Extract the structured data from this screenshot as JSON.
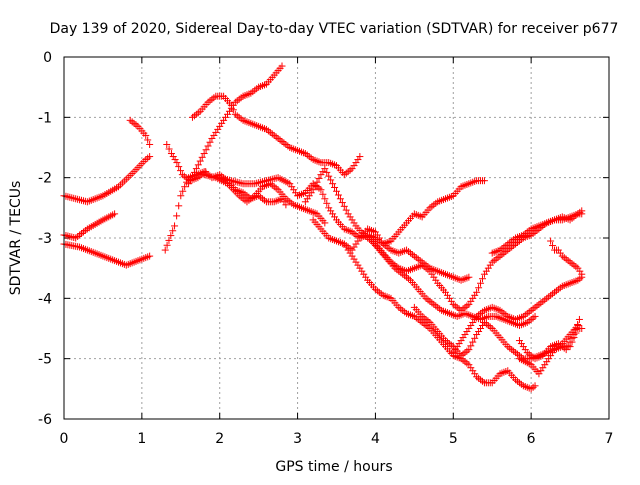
{
  "chart_data": {
    "type": "scatter",
    "title": "Day 139 of 2020, Sidereal Day-to-day VTEC variation (SDTVAR) for receiver p677",
    "xlabel": "GPS time / hours",
    "ylabel": "SDTVAR / TECUs",
    "xlim": [
      0,
      7
    ],
    "ylim": [
      -6,
      0
    ],
    "xticks": [
      {
        "value": 0,
        "label": "0"
      },
      {
        "value": 1,
        "label": "1"
      },
      {
        "value": 2,
        "label": "2"
      },
      {
        "value": 3,
        "label": "3"
      },
      {
        "value": 4,
        "label": "4"
      },
      {
        "value": 5,
        "label": "5"
      },
      {
        "value": 6,
        "label": "6"
      },
      {
        "value": 7,
        "label": "7"
      }
    ],
    "yticks": [
      {
        "value": 0,
        "label": "0"
      },
      {
        "value": -1,
        "label": "-1"
      },
      {
        "value": -2,
        "label": "-2"
      },
      {
        "value": -3,
        "label": "-3"
      },
      {
        "value": -4,
        "label": "-4"
      },
      {
        "value": -5,
        "label": "-5"
      },
      {
        "value": -6,
        "label": "-6"
      }
    ],
    "grid": true,
    "marker": "+",
    "marker_color": "#ff0000",
    "series": [
      {
        "x": [
          0.0,
          0.3,
          0.5,
          0.7,
          0.9,
          1.05,
          1.1
        ],
        "y": [
          -2.3,
          -2.4,
          -2.3,
          -2.15,
          -1.9,
          -1.7,
          -1.65
        ]
      },
      {
        "x": [
          0.0,
          0.2,
          0.4,
          0.6,
          0.8,
          1.0,
          1.1
        ],
        "y": [
          -3.1,
          -3.15,
          -3.25,
          -3.35,
          -3.45,
          -3.35,
          -3.3
        ]
      },
      {
        "x": [
          0.0,
          0.15,
          0.3,
          0.5,
          0.65
        ],
        "y": [
          -2.95,
          -3.0,
          -2.85,
          -2.7,
          -2.6
        ]
      },
      {
        "x": [
          0.85,
          0.95,
          1.05,
          1.1
        ],
        "y": [
          -1.05,
          -1.15,
          -1.3,
          -1.45
        ]
      },
      {
        "x": [
          1.32,
          1.38,
          1.45,
          1.52,
          1.62,
          1.72,
          1.82
        ],
        "y": [
          -1.45,
          -1.6,
          -1.75,
          -1.95,
          -2.05,
          -2.0,
          -1.9
        ]
      },
      {
        "x": [
          1.3,
          1.42,
          1.5,
          1.6,
          1.7,
          1.8,
          1.9,
          2.0,
          2.1,
          2.2,
          2.3,
          2.4,
          2.5,
          2.6,
          2.7,
          2.8,
          2.85
        ],
        "y": [
          -3.2,
          -2.8,
          -2.3,
          -2.0,
          -1.95,
          -1.9,
          -2.0,
          -1.95,
          -2.05,
          -2.2,
          -2.25,
          -2.35,
          -2.3,
          -2.4,
          -2.4,
          -2.35,
          -2.45
        ]
      },
      {
        "x": [
          1.65,
          1.75,
          1.85,
          1.95,
          2.05,
          2.15,
          2.2,
          2.3,
          2.4,
          2.5,
          2.6,
          2.7,
          2.8,
          2.9,
          3.0,
          3.1,
          3.2,
          3.3,
          3.4,
          3.5,
          3.6,
          3.7,
          3.8
        ],
        "y": [
          -1.0,
          -0.9,
          -0.75,
          -0.65,
          -0.65,
          -0.8,
          -0.95,
          -1.05,
          -1.1,
          -1.15,
          -1.2,
          -1.3,
          -1.4,
          -1.5,
          -1.55,
          -1.6,
          -1.7,
          -1.75,
          -1.75,
          -1.8,
          -1.95,
          -1.85,
          -1.65
        ]
      },
      {
        "x": [
          1.6,
          1.7,
          1.8,
          1.9,
          2.0,
          2.1,
          2.2,
          2.3,
          2.4,
          2.5,
          2.6,
          2.7,
          2.8
        ],
        "y": [
          -2.1,
          -1.85,
          -1.6,
          -1.35,
          -1.15,
          -0.95,
          -0.75,
          -0.65,
          -0.6,
          -0.5,
          -0.45,
          -0.3,
          -0.15
        ]
      },
      {
        "x": [
          1.8,
          1.95,
          2.1,
          2.25,
          2.35,
          2.45,
          2.55,
          2.65,
          2.75,
          2.85,
          2.95,
          3.05,
          3.15,
          3.25,
          3.35
        ],
        "y": [
          -1.95,
          -2.0,
          -2.1,
          -2.3,
          -2.4,
          -2.3,
          -2.15,
          -2.1,
          -2.2,
          -2.35,
          -2.45,
          -2.5,
          -2.55,
          -2.6,
          -2.75
        ]
      },
      {
        "x": [
          2.0,
          2.15,
          2.3,
          2.45,
          2.6,
          2.75,
          2.9,
          3.0,
          3.1,
          3.2,
          3.3,
          3.4,
          3.5,
          3.6,
          3.7,
          3.8,
          3.9,
          4.0,
          4.1,
          4.2,
          4.3,
          4.4,
          4.5,
          4.6,
          4.7,
          4.8,
          4.9,
          5.0,
          5.1,
          5.2
        ],
        "y": [
          -2.0,
          -2.05,
          -2.1,
          -2.1,
          -2.05,
          -2.0,
          -2.1,
          -2.3,
          -2.25,
          -2.1,
          -2.2,
          -2.5,
          -2.7,
          -2.85,
          -2.9,
          -3.0,
          -2.95,
          -3.0,
          -3.1,
          -3.2,
          -3.25,
          -3.2,
          -3.3,
          -3.4,
          -3.5,
          -3.55,
          -3.6,
          -3.65,
          -3.7,
          -3.65
        ]
      },
      {
        "x": [
          3.1,
          3.2,
          3.3,
          3.35,
          3.45,
          3.55,
          3.65,
          3.75,
          3.85,
          3.95,
          4.05,
          4.15,
          4.25,
          4.35,
          4.45,
          4.55,
          4.65,
          4.75,
          4.85,
          4.95,
          5.05,
          5.15,
          5.25,
          5.35,
          5.45,
          5.55,
          5.65,
          5.75,
          5.85,
          5.95,
          6.05
        ],
        "y": [
          -2.4,
          -2.2,
          -1.95,
          -1.85,
          -2.1,
          -2.35,
          -2.6,
          -2.8,
          -2.95,
          -3.05,
          -3.2,
          -3.35,
          -3.5,
          -3.6,
          -3.7,
          -3.85,
          -4.0,
          -4.1,
          -4.2,
          -4.25,
          -4.3,
          -4.25,
          -4.3,
          -4.35,
          -4.3,
          -4.3,
          -4.35,
          -4.4,
          -4.45,
          -4.4,
          -4.3
        ]
      },
      {
        "x": [
          3.2,
          3.3,
          3.4,
          3.5,
          3.6,
          3.7,
          3.8,
          3.9,
          4.0,
          4.1,
          4.2,
          4.3,
          4.4,
          4.5,
          4.6,
          4.7,
          4.8,
          4.9,
          5.0,
          5.1,
          5.2,
          5.3,
          5.4
        ],
        "y": [
          -2.7,
          -2.85,
          -3.0,
          -3.05,
          -3.1,
          -3.2,
          -3.0,
          -2.85,
          -2.9,
          -3.1,
          -3.05,
          -2.9,
          -2.75,
          -2.6,
          -2.65,
          -2.5,
          -2.4,
          -2.35,
          -2.3,
          -2.15,
          -2.1,
          -2.05,
          -2.05
        ]
      },
      {
        "x": [
          3.6,
          3.7,
          3.8,
          3.9,
          4.0,
          4.1,
          4.2,
          4.3,
          4.4,
          4.5,
          4.6,
          4.7,
          4.8,
          4.9,
          5.0,
          5.1,
          5.2,
          5.3,
          5.4,
          5.5,
          5.6,
          5.7,
          5.8,
          5.9,
          6.0,
          6.05
        ],
        "y": [
          -3.1,
          -3.3,
          -3.5,
          -3.7,
          -3.85,
          -3.95,
          -4.0,
          -4.15,
          -4.25,
          -4.3,
          -4.4,
          -4.5,
          -4.65,
          -4.8,
          -4.95,
          -5.0,
          -5.1,
          -5.3,
          -5.4,
          -5.4,
          -5.25,
          -5.2,
          -5.35,
          -5.45,
          -5.5,
          -5.45
        ]
      },
      {
        "x": [
          3.9,
          4.0,
          4.1,
          4.2,
          4.3,
          4.4,
          4.5,
          4.6,
          4.7,
          4.8,
          4.9,
          5.0,
          5.1,
          5.2,
          5.3,
          5.4,
          5.5,
          5.6,
          5.7,
          5.8,
          5.9,
          6.0,
          6.1,
          6.2,
          6.3,
          6.4,
          6.5,
          6.6,
          6.65
        ],
        "y": [
          -2.95,
          -3.1,
          -3.25,
          -3.4,
          -3.5,
          -3.55,
          -3.5,
          -3.45,
          -3.55,
          -3.75,
          -3.9,
          -4.1,
          -4.2,
          -4.1,
          -3.9,
          -3.6,
          -3.4,
          -3.3,
          -3.2,
          -3.1,
          -3.0,
          -2.95,
          -2.85,
          -2.75,
          -2.7,
          -2.7,
          -2.65,
          -2.6,
          -2.6
        ]
      },
      {
        "x": [
          5.5,
          5.6,
          5.7,
          5.8,
          5.9,
          6.0,
          6.1,
          6.2,
          6.3,
          6.4,
          6.5,
          6.6,
          6.65
        ],
        "y": [
          -3.25,
          -3.2,
          -3.1,
          -3.0,
          -2.95,
          -2.85,
          -2.8,
          -2.75,
          -2.7,
          -2.65,
          -2.7,
          -2.6,
          -2.55
        ]
      },
      {
        "x": [
          5.0,
          5.1,
          5.2,
          5.3,
          5.4,
          5.5,
          5.6,
          5.7,
          5.8,
          5.9,
          6.0,
          6.1,
          6.2,
          6.3,
          6.4,
          6.5,
          6.6,
          6.65
        ],
        "y": [
          -4.9,
          -4.7,
          -4.5,
          -4.3,
          -4.2,
          -4.15,
          -4.2,
          -4.3,
          -4.35,
          -4.3,
          -4.2,
          -4.1,
          -4.0,
          -3.9,
          -3.8,
          -3.75,
          -3.7,
          -3.65
        ]
      },
      {
        "x": [
          6.25,
          6.3,
          6.35,
          6.4,
          6.45,
          6.5,
          6.55,
          6.6,
          6.65
        ],
        "y": [
          -3.05,
          -3.2,
          -3.2,
          -3.3,
          -3.35,
          -3.4,
          -3.45,
          -3.5,
          -3.6
        ]
      },
      {
        "x": [
          5.85,
          5.95,
          6.05,
          6.15,
          6.25,
          6.35,
          6.45,
          6.55,
          6.62
        ],
        "y": [
          -4.7,
          -4.9,
          -5.0,
          -4.95,
          -4.8,
          -4.75,
          -4.85,
          -4.6,
          -4.35
        ]
      },
      {
        "x": [
          5.85,
          6.0,
          6.1,
          6.2,
          6.3,
          6.4,
          6.5,
          6.55,
          6.6,
          6.65
        ],
        "y": [
          -5.0,
          -5.1,
          -5.25,
          -5.05,
          -4.85,
          -4.8,
          -4.8,
          -4.65,
          -4.5,
          -4.5
        ]
      },
      {
        "x": [
          4.5,
          4.6,
          4.7,
          4.8,
          4.9,
          5.0,
          5.1,
          5.2,
          5.3,
          5.4,
          5.5,
          5.6,
          5.7,
          5.8,
          5.9,
          6.0,
          6.1,
          6.2,
          6.3,
          6.4,
          6.5,
          6.6
        ],
        "y": [
          -4.15,
          -4.3,
          -4.4,
          -4.55,
          -4.7,
          -4.8,
          -4.95,
          -4.85,
          -4.6,
          -4.4,
          -4.5,
          -4.65,
          -4.8,
          -4.9,
          -5.0,
          -5.0,
          -4.95,
          -4.9,
          -4.85,
          -4.75,
          -4.6,
          -4.45
        ]
      }
    ]
  }
}
